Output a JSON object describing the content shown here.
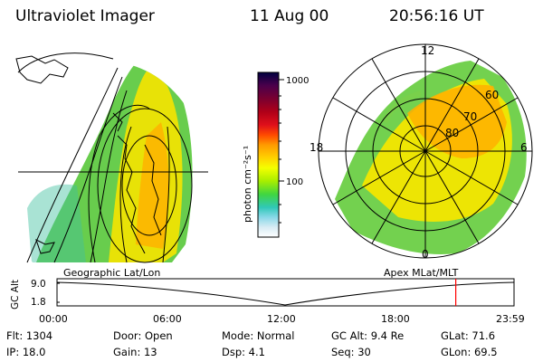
{
  "header": {
    "title": "Ultraviolet Imager",
    "date": "11 Aug 00",
    "time": "20:56:16 UT"
  },
  "left_panel": {
    "label": "Geographic Lat/Lon"
  },
  "right_panel": {
    "label": "Apex  MLat/MLT",
    "mlt_labels": [
      "12",
      "18",
      "6",
      "0"
    ],
    "lat_labels": [
      "60",
      "70",
      "80"
    ]
  },
  "colorbar": {
    "unit_label": "photon cm⁻²s⁻¹",
    "ticks": [
      "1000",
      "100"
    ],
    "colors": [
      "#000040",
      "#4b004b",
      "#7a0030",
      "#b00018",
      "#e0101a",
      "#ff4a00",
      "#ff9a00",
      "#ffd200",
      "#f4ff00",
      "#a8ee00",
      "#40d640",
      "#30c8b8",
      "#8ad8e8",
      "#d8ecf4",
      "#ffffff"
    ]
  },
  "timeline": {
    "axis_label": "GC Alt",
    "y_ticks": [
      "9.0",
      "1.8"
    ],
    "x_ticks": [
      "00:00",
      "06:00",
      "12:00",
      "18:00",
      "23:59"
    ],
    "marker_time_hours": 20.94,
    "marker_color": "#ff0000"
  },
  "info": {
    "flt": "Flt: 1304",
    "ip": "IP: 18.0",
    "door": "Door: Open",
    "gain": "Gain: 13",
    "mode": "Mode: Normal",
    "dsp": "Dsp:     4.1",
    "gcalt": "GC Alt: 9.4 Re",
    "seq": "Seq: 30",
    "glat": "GLat:   71.6",
    "glon": "GLon:   69.5"
  }
}
